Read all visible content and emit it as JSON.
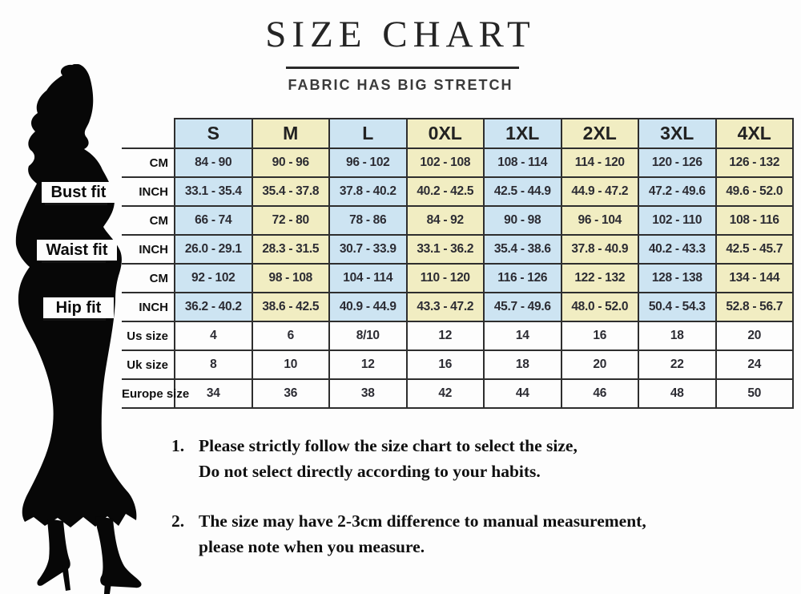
{
  "title": "SIZE CHART",
  "subtitle": "FABRIC HAS BIG STRETCH",
  "figure": {
    "name": "woman-silhouette",
    "fit_labels": [
      "Bust fit",
      "Waist fit",
      "Hip fit"
    ]
  },
  "chart_data": {
    "type": "table",
    "title": "SIZE CHART",
    "subtitle": "FABRIC HAS BIG STRETCH",
    "sizes": [
      "S",
      "M",
      "L",
      "0XL",
      "1XL",
      "2XL",
      "3XL",
      "4XL"
    ],
    "rows": [
      {
        "section": "Bust fit",
        "label": "CM",
        "shaded": true,
        "values": [
          "84 - 90",
          "90 - 96",
          "96 - 102",
          "102 - 108",
          "108 - 114",
          "114 - 120",
          "120 - 126",
          "126 - 132"
        ]
      },
      {
        "section": "Bust fit",
        "label": "INCH",
        "shaded": true,
        "values": [
          "33.1 - 35.4",
          "35.4 - 37.8",
          "37.8 - 40.2",
          "40.2 - 42.5",
          "42.5 - 44.9",
          "44.9 - 47.2",
          "47.2 - 49.6",
          "49.6 - 52.0"
        ]
      },
      {
        "section": "Waist fit",
        "label": "CM",
        "shaded": true,
        "values": [
          "66 - 74",
          "72 - 80",
          "78 - 86",
          "84 - 92",
          "90 - 98",
          "96 - 104",
          "102 - 110",
          "108 - 116"
        ]
      },
      {
        "section": "Waist fit",
        "label": "INCH",
        "shaded": true,
        "values": [
          "26.0 - 29.1",
          "28.3 - 31.5",
          "30.7 - 33.9",
          "33.1 - 36.2",
          "35.4 - 38.6",
          "37.8 - 40.9",
          "40.2 - 43.3",
          "42.5 - 45.7"
        ]
      },
      {
        "section": "Hip fit",
        "label": "CM",
        "shaded": true,
        "values": [
          "92 - 102",
          "98 - 108",
          "104 - 114",
          "110 - 120",
          "116 - 126",
          "122 - 132",
          "128 - 138",
          "134 - 144"
        ]
      },
      {
        "section": "Hip fit",
        "label": "INCH",
        "shaded": true,
        "values": [
          "36.2 - 40.2",
          "38.6 - 42.5",
          "40.9 - 44.9",
          "43.3 - 47.2",
          "45.7 - 49.6",
          "48.0 - 52.0",
          "50.4 - 54.3",
          "52.8 - 56.7"
        ]
      },
      {
        "section": "",
        "label": "Us size",
        "shaded": false,
        "values": [
          "4",
          "6",
          "8/10",
          "12",
          "14",
          "16",
          "18",
          "20"
        ]
      },
      {
        "section": "",
        "label": "Uk size",
        "shaded": false,
        "values": [
          "8",
          "10",
          "12",
          "16",
          "18",
          "20",
          "22",
          "24"
        ]
      },
      {
        "section": "",
        "label": "Europe size",
        "shaded": false,
        "values": [
          "34",
          "36",
          "38",
          "42",
          "44",
          "46",
          "48",
          "50"
        ]
      }
    ],
    "colors": {
      "blue": "#cde4f2",
      "yellow": "#f1edc2",
      "border": "#2e2e2e"
    }
  },
  "notes": [
    {
      "num": "1.",
      "line1": "Please strictly follow the size chart to select the size,",
      "line2": "Do not select directly according to your habits."
    },
    {
      "num": "2.",
      "line1": "The size may have 2-3cm difference  to manual measurement,",
      "line2": "please note when you measure."
    }
  ]
}
